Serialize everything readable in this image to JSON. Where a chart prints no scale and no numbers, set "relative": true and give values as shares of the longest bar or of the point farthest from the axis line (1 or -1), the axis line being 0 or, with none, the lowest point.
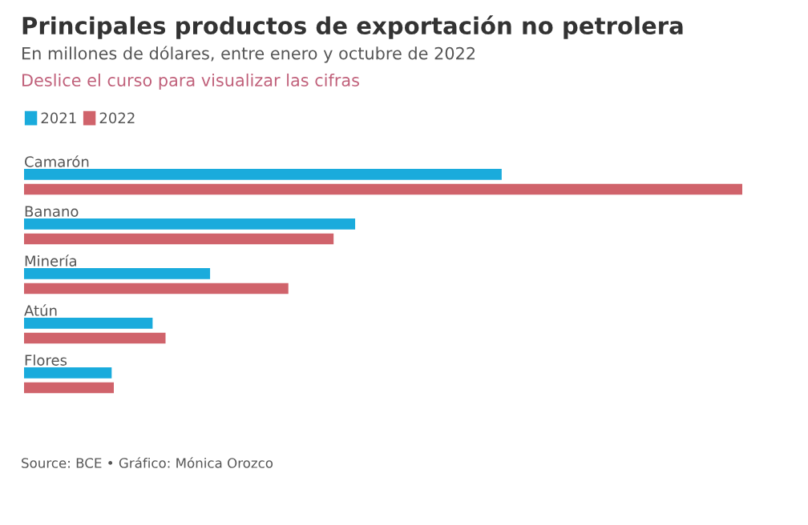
{
  "chart_data": {
    "type": "bar",
    "orientation": "horizontal",
    "relative": true,
    "title": "Principales productos de exportación no petrolera",
    "subtitle": "En millones de dólares, entre enero y octubre de 2022",
    "annotations": [
      "Deslice el curso para visualizar las cifras",
      "Source: BCE • Gráfico: Mónica Orozco"
    ],
    "categories": [
      "Camarón",
      "Banano",
      "Minería",
      "Atún",
      "Flores"
    ],
    "series": [
      {
        "name": "2021",
        "color": "#1aabdc",
        "values": [
          0.665,
          0.461,
          0.259,
          0.179,
          0.122
        ]
      },
      {
        "name": "2022",
        "color": "#d0636b",
        "values": [
          1,
          0.431,
          0.368,
          0.197,
          0.125
        ]
      }
    ],
    "legend": "top left"
  }
}
